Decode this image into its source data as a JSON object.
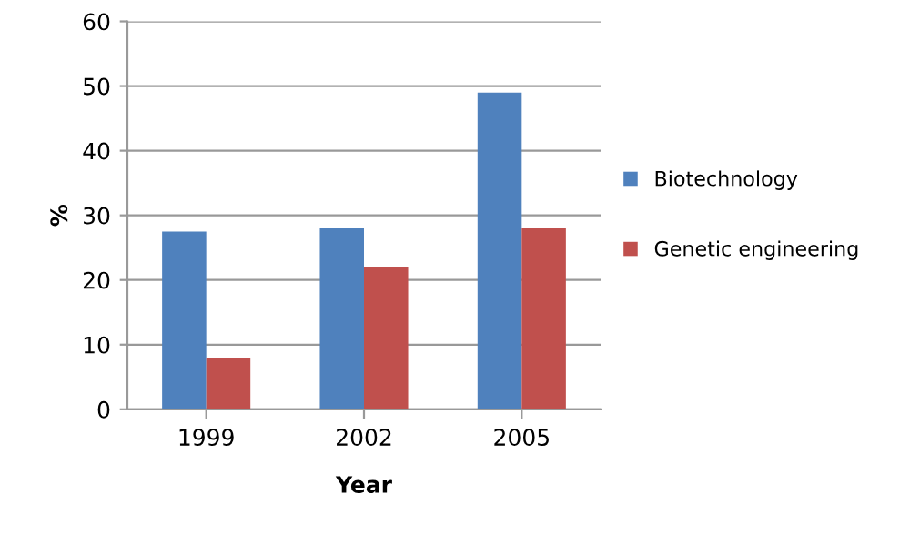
{
  "chart_data": {
    "type": "bar",
    "xlabel": "Year",
    "ylabel": "%",
    "categories": [
      "1999",
      "2002",
      "2005"
    ],
    "series": [
      {
        "name": "Biotechnology",
        "color": "#4f81bd",
        "values": [
          27.5,
          28,
          49
        ]
      },
      {
        "name": "Genetic engineering",
        "color": "#c0504d",
        "values": [
          8,
          22,
          28
        ]
      }
    ],
    "ylim": [
      0,
      60
    ],
    "yticks": [
      0,
      10,
      20,
      30,
      40,
      50,
      60
    ],
    "grid": "y",
    "legend": "right"
  }
}
